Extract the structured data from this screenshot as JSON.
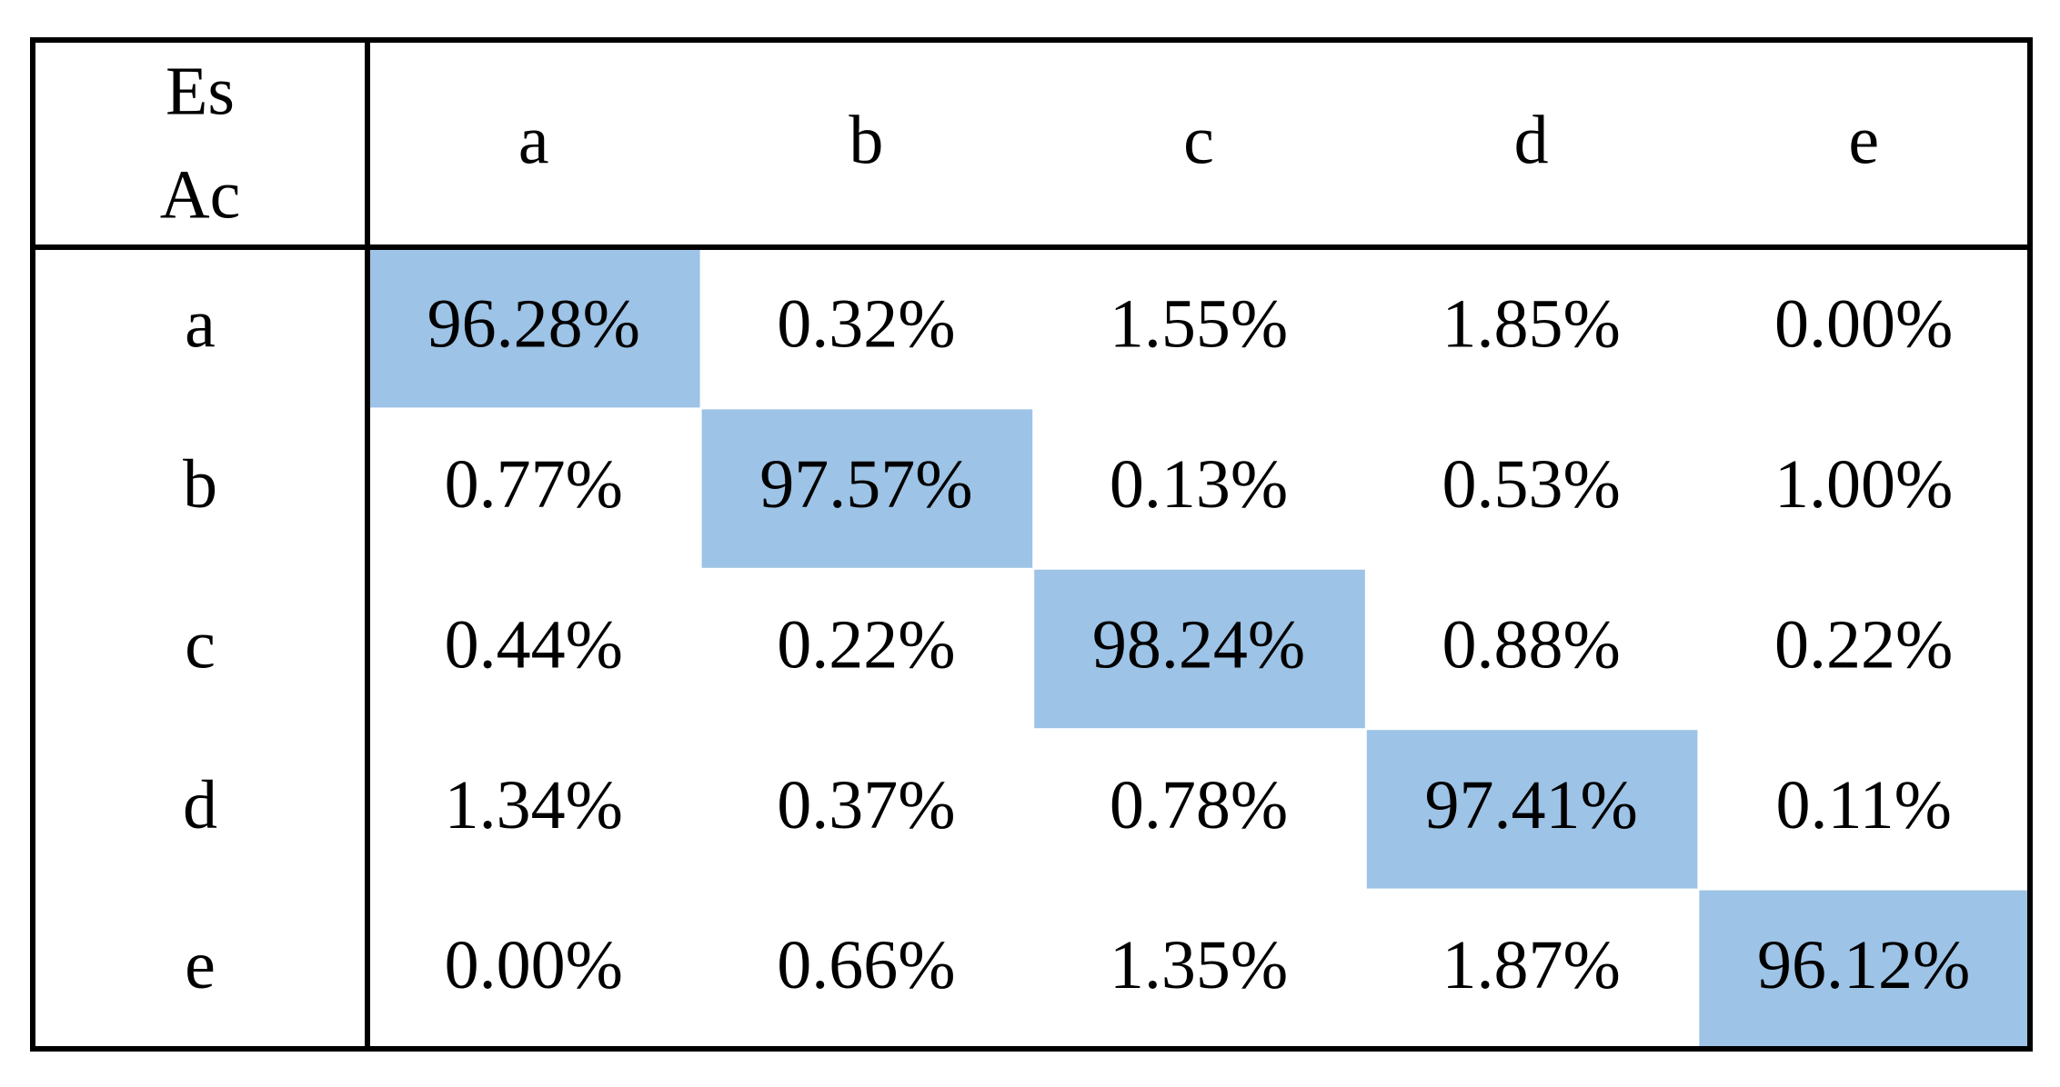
{
  "table": {
    "corner": [
      "Es",
      "Ac"
    ],
    "columns": [
      "a",
      "b",
      "c",
      "d",
      "e"
    ],
    "rows": [
      {
        "label": "a",
        "cells": [
          "96.28%",
          "0.32%",
          "1.55%",
          "1.85%",
          "0.00%"
        ]
      },
      {
        "label": "b",
        "cells": [
          "0.77%",
          "97.57%",
          "0.13%",
          "0.53%",
          "1.00%"
        ]
      },
      {
        "label": "c",
        "cells": [
          "0.44%",
          "0.22%",
          "98.24%",
          "0.88%",
          "0.22%"
        ]
      },
      {
        "label": "d",
        "cells": [
          "1.34%",
          "0.37%",
          "0.78%",
          "97.41%",
          "0.11%"
        ]
      },
      {
        "label": "e",
        "cells": [
          "0.00%",
          "0.66%",
          "1.35%",
          "1.87%",
          "96.12%"
        ]
      }
    ]
  }
}
